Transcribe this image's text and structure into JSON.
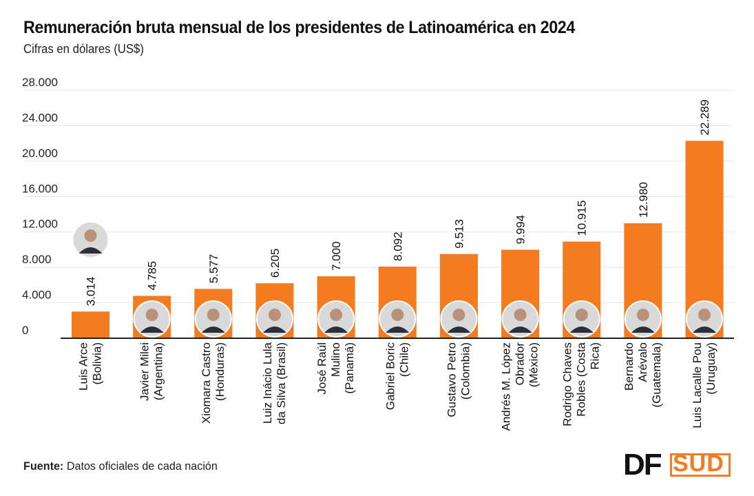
{
  "title": "Remuneración bruta mensual de los presidentes de Latinoamérica en 2024",
  "subtitle": "Cifras en dólares (US$)",
  "source_label": "Fuente:",
  "source_text": "Datos oficiales de cada nación",
  "logo": {
    "df": "DF",
    "sud": "SUD"
  },
  "colors": {
    "bar": "#f47b20",
    "grid": "#e5e5e5",
    "axis": "#222222",
    "text": "#111111"
  },
  "chart_data": {
    "type": "bar",
    "title": "Remuneración bruta mensual de los presidentes de Latinoamérica en 2024",
    "ylabel": "Cifras en dólares (US$)",
    "ylim": [
      0,
      28000
    ],
    "yticks": [
      0,
      4000,
      8000,
      12000,
      16000,
      20000,
      24000,
      28000
    ],
    "ytick_labels": [
      "0",
      "4.000",
      "8.000",
      "12.000",
      "16.000",
      "20.000",
      "24.000",
      "28.000"
    ],
    "grid": true,
    "categories": [
      [
        "Luis Arce",
        "(Bolivia)"
      ],
      [
        "Javier Milei",
        "(Argentina)"
      ],
      [
        "Xiomara Castro",
        "(Honduras)"
      ],
      [
        "Luiz Inácio Lula",
        "da Silva (Brasil)"
      ],
      [
        "José Raúl",
        "Mulino",
        "(Panamá)"
      ],
      [
        "Gabriel Boric",
        "(Chile)"
      ],
      [
        "Gustavo Petro",
        "(Colombia)"
      ],
      [
        "Andrés M. López",
        "Obrador",
        "(México)"
      ],
      [
        "Rodrigo Chaves",
        "Robles (Costa",
        "Rica)"
      ],
      [
        "Bernardo",
        "Arévalo",
        "(Guatemala)"
      ],
      [
        "Luis Lacalle Pou",
        "(Uruguay)"
      ]
    ],
    "values": [
      3014,
      4785,
      5577,
      6205,
      7000,
      8092,
      9513,
      9994,
      10915,
      12980,
      22289
    ],
    "value_labels": [
      "3.014",
      "4.785",
      "5.577",
      "6.205",
      "7.000",
      "8.092",
      "9.513",
      "9.994",
      "10.915",
      "12.980",
      "22.289"
    ],
    "portrait_icons": [
      "president-portrait-icon",
      "president-portrait-icon",
      "president-portrait-icon",
      "president-portrait-icon",
      "president-portrait-icon",
      "president-portrait-icon",
      "president-portrait-icon",
      "president-portrait-icon",
      "president-portrait-icon",
      "president-portrait-icon",
      "president-portrait-icon"
    ]
  }
}
